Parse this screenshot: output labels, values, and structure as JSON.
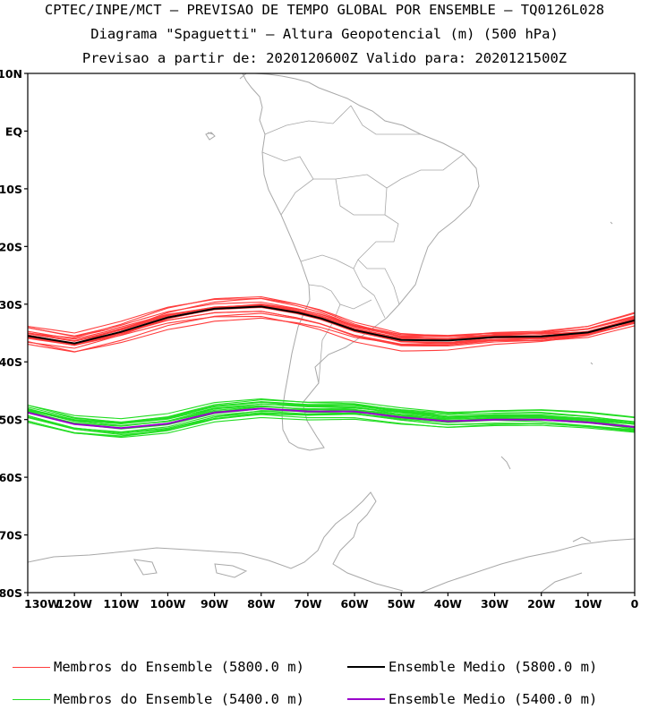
{
  "header": {
    "line1": "CPTEC/INPE/MCT – PREVISAO DE TEMPO GLOBAL POR ENSEMBLE – TQ0126L028",
    "line2": "Diagrama \"Spaguetti\" – Altura Geopotencial (m) (500 hPa)",
    "line3": "Previsao a partir de: 2020120600Z  Valido para: 2020121500Z"
  },
  "map": {
    "lon_range": [
      -130,
      0
    ],
    "lat_range": [
      -80,
      10
    ],
    "lat_ticks": [
      {
        "value": 10,
        "label": "10N"
      },
      {
        "value": 0,
        "label": "EQ"
      },
      {
        "value": -10,
        "label": "10S"
      },
      {
        "value": -20,
        "label": "20S"
      },
      {
        "value": -30,
        "label": "30S"
      },
      {
        "value": -40,
        "label": "40S"
      },
      {
        "value": -50,
        "label": "50S"
      },
      {
        "value": -60,
        "label": "60S"
      },
      {
        "value": -70,
        "label": "70S"
      },
      {
        "value": -80,
        "label": "80S"
      }
    ],
    "lon_ticks": [
      {
        "value": -130,
        "label": "130W"
      },
      {
        "value": -120,
        "label": "120W"
      },
      {
        "value": -110,
        "label": "110W"
      },
      {
        "value": -100,
        "label": "100W"
      },
      {
        "value": -90,
        "label": "90W"
      },
      {
        "value": -80,
        "label": "80W"
      },
      {
        "value": -70,
        "label": "70W"
      },
      {
        "value": -60,
        "label": "60W"
      },
      {
        "value": -50,
        "label": "50W"
      },
      {
        "value": -40,
        "label": "40W"
      },
      {
        "value": -30,
        "label": "30W"
      },
      {
        "value": -20,
        "label": "20W"
      },
      {
        "value": -10,
        "label": "10W"
      },
      {
        "value": 0,
        "label": "0"
      }
    ],
    "colors": {
      "coast": "#a8a8a8",
      "members_5800": "#ff3c3c",
      "mean_5800": "#000000",
      "members_5400": "#22dd22",
      "mean_5400": "#9900cc"
    },
    "ensemble_mean_5800": [
      [
        -130,
        -35.5
      ],
      [
        -120,
        -36.8
      ],
      [
        -110,
        -34.8
      ],
      [
        -100,
        -32.3
      ],
      [
        -90,
        -30.8
      ],
      [
        -80,
        -30.4
      ],
      [
        -72,
        -31.5
      ],
      [
        -67,
        -32.5
      ],
      [
        -60,
        -34.5
      ],
      [
        -50,
        -36.2
      ],
      [
        -40,
        -36.3
      ],
      [
        -30,
        -35.7
      ],
      [
        -20,
        -35.6
      ],
      [
        -10,
        -34.9
      ],
      [
        0,
        -32.8
      ]
    ],
    "ensemble_mean_5400": [
      [
        -130,
        -48.8
      ],
      [
        -120,
        -50.8
      ],
      [
        -110,
        -51.5
      ],
      [
        -100,
        -50.7
      ],
      [
        -90,
        -48.8
      ],
      [
        -80,
        -48.1
      ],
      [
        -70,
        -48.6
      ],
      [
        -60,
        -48.6
      ],
      [
        -50,
        -49.6
      ],
      [
        -40,
        -50.3
      ],
      [
        -30,
        -50.0
      ],
      [
        -20,
        -50.0
      ],
      [
        -10,
        -50.5
      ],
      [
        0,
        -51.3
      ]
    ]
  },
  "legend": {
    "members_5800": "Membros do Ensemble (5800.0 m)",
    "mean_5800": "Ensemble Medio (5800.0 m)",
    "members_5400": "Membros do Ensemble (5400.0 m)",
    "mean_5400": "Ensemble Medio (5400.0 m)"
  }
}
